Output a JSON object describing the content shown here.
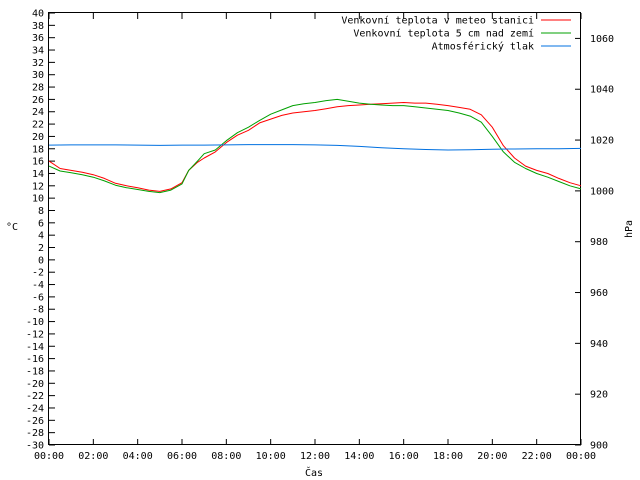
{
  "chart_data": {
    "type": "line",
    "title": "",
    "xlabel": "Čas",
    "ylabel": "°C",
    "y2label": "hPa",
    "xlim": [
      0,
      24
    ],
    "ylim": [
      -30,
      40
    ],
    "y2lim": [
      900,
      1070
    ],
    "grid": false,
    "legend_position": "top-right",
    "x_ticks": [
      "00:00",
      "02:00",
      "04:00",
      "06:00",
      "08:00",
      "10:00",
      "12:00",
      "14:00",
      "16:00",
      "18:00",
      "20:00",
      "22:00",
      "00:00"
    ],
    "y_ticks": [
      -30,
      -28,
      -26,
      -24,
      -22,
      -20,
      -18,
      -16,
      -14,
      -12,
      -10,
      -8,
      -6,
      -4,
      -2,
      0,
      2,
      4,
      6,
      8,
      10,
      12,
      14,
      16,
      18,
      20,
      22,
      24,
      26,
      28,
      30,
      32,
      34,
      36,
      38,
      40
    ],
    "y2_ticks": [
      900,
      920,
      940,
      960,
      980,
      1000,
      1020,
      1040,
      1060
    ],
    "series": [
      {
        "name": "Venkovní teplota v meteo stanici",
        "color": "#ff0000",
        "axis": "left",
        "points": [
          [
            0,
            16.0
          ],
          [
            0.5,
            14.8
          ],
          [
            1,
            14.5
          ],
          [
            1.5,
            14.2
          ],
          [
            2,
            13.8
          ],
          [
            2.5,
            13.2
          ],
          [
            3,
            12.4
          ],
          [
            3.5,
            12.0
          ],
          [
            4,
            11.7
          ],
          [
            4.5,
            11.3
          ],
          [
            5,
            11.1
          ],
          [
            5.5,
            11.5
          ],
          [
            6,
            12.5
          ],
          [
            6.3,
            14.5
          ],
          [
            6.7,
            15.8
          ],
          [
            7,
            16.5
          ],
          [
            7.5,
            17.5
          ],
          [
            8,
            19.0
          ],
          [
            8.5,
            20.2
          ],
          [
            9,
            21.0
          ],
          [
            9.5,
            22.2
          ],
          [
            10,
            22.8
          ],
          [
            10.5,
            23.4
          ],
          [
            11,
            23.8
          ],
          [
            11.5,
            24.0
          ],
          [
            12,
            24.2
          ],
          [
            12.5,
            24.5
          ],
          [
            13,
            24.8
          ],
          [
            13.5,
            25.0
          ],
          [
            14,
            25.1
          ],
          [
            14.5,
            25.2
          ],
          [
            15,
            25.3
          ],
          [
            15.5,
            25.4
          ],
          [
            16,
            25.5
          ],
          [
            16.5,
            25.4
          ],
          [
            17,
            25.4
          ],
          [
            17.5,
            25.2
          ],
          [
            18,
            25.0
          ],
          [
            18.5,
            24.7
          ],
          [
            19,
            24.4
          ],
          [
            19.5,
            23.5
          ],
          [
            20,
            21.5
          ],
          [
            20.5,
            18.5
          ],
          [
            21,
            16.5
          ],
          [
            21.5,
            15.2
          ],
          [
            22,
            14.5
          ],
          [
            22.5,
            14.0
          ],
          [
            23,
            13.2
          ],
          [
            23.5,
            12.5
          ],
          [
            24,
            12.0
          ]
        ]
      },
      {
        "name": "Venkovní teplota 5 cm nad zemí",
        "color": "#00a000",
        "axis": "left",
        "points": [
          [
            0,
            15.2
          ],
          [
            0.5,
            14.4
          ],
          [
            1,
            14.1
          ],
          [
            1.5,
            13.8
          ],
          [
            2,
            13.4
          ],
          [
            2.5,
            12.8
          ],
          [
            3,
            12.1
          ],
          [
            3.5,
            11.7
          ],
          [
            4,
            11.4
          ],
          [
            4.5,
            11.1
          ],
          [
            5,
            10.9
          ],
          [
            5.5,
            11.3
          ],
          [
            6,
            12.3
          ],
          [
            6.3,
            14.5
          ],
          [
            6.7,
            16.0
          ],
          [
            7,
            17.2
          ],
          [
            7.5,
            17.8
          ],
          [
            8,
            19.3
          ],
          [
            8.5,
            20.6
          ],
          [
            9,
            21.5
          ],
          [
            9.5,
            22.6
          ],
          [
            10,
            23.6
          ],
          [
            10.5,
            24.3
          ],
          [
            11,
            25.0
          ],
          [
            11.5,
            25.3
          ],
          [
            12,
            25.5
          ],
          [
            12.5,
            25.8
          ],
          [
            13,
            26.0
          ],
          [
            13.5,
            25.7
          ],
          [
            14,
            25.4
          ],
          [
            14.5,
            25.2
          ],
          [
            15,
            25.1
          ],
          [
            15.5,
            25.0
          ],
          [
            16,
            25.0
          ],
          [
            16.5,
            24.8
          ],
          [
            17,
            24.6
          ],
          [
            17.5,
            24.4
          ],
          [
            18,
            24.2
          ],
          [
            18.5,
            23.8
          ],
          [
            19,
            23.3
          ],
          [
            19.5,
            22.3
          ],
          [
            20,
            20.0
          ],
          [
            20.5,
            17.5
          ],
          [
            21,
            15.8
          ],
          [
            21.5,
            14.8
          ],
          [
            22,
            14.0
          ],
          [
            22.5,
            13.4
          ],
          [
            23,
            12.7
          ],
          [
            23.5,
            12.0
          ],
          [
            24,
            11.5
          ]
        ]
      },
      {
        "name": "Atmosférický tlak",
        "color": "#0070e0",
        "axis": "right",
        "points": [
          [
            0,
            1018.0
          ],
          [
            1,
            1018.1
          ],
          [
            2,
            1018.1
          ],
          [
            3,
            1018.1
          ],
          [
            4,
            1018.0
          ],
          [
            5,
            1017.9
          ],
          [
            6,
            1018.0
          ],
          [
            7,
            1018.0
          ],
          [
            8,
            1018.1
          ],
          [
            9,
            1018.2
          ],
          [
            10,
            1018.2
          ],
          [
            11,
            1018.2
          ],
          [
            12,
            1018.1
          ],
          [
            13,
            1017.9
          ],
          [
            14,
            1017.5
          ],
          [
            15,
            1017.0
          ],
          [
            16,
            1016.6
          ],
          [
            17,
            1016.3
          ],
          [
            18,
            1016.1
          ],
          [
            19,
            1016.2
          ],
          [
            20,
            1016.4
          ],
          [
            21,
            1016.5
          ],
          [
            22,
            1016.6
          ],
          [
            23,
            1016.6
          ],
          [
            24,
            1016.7
          ]
        ]
      }
    ]
  }
}
